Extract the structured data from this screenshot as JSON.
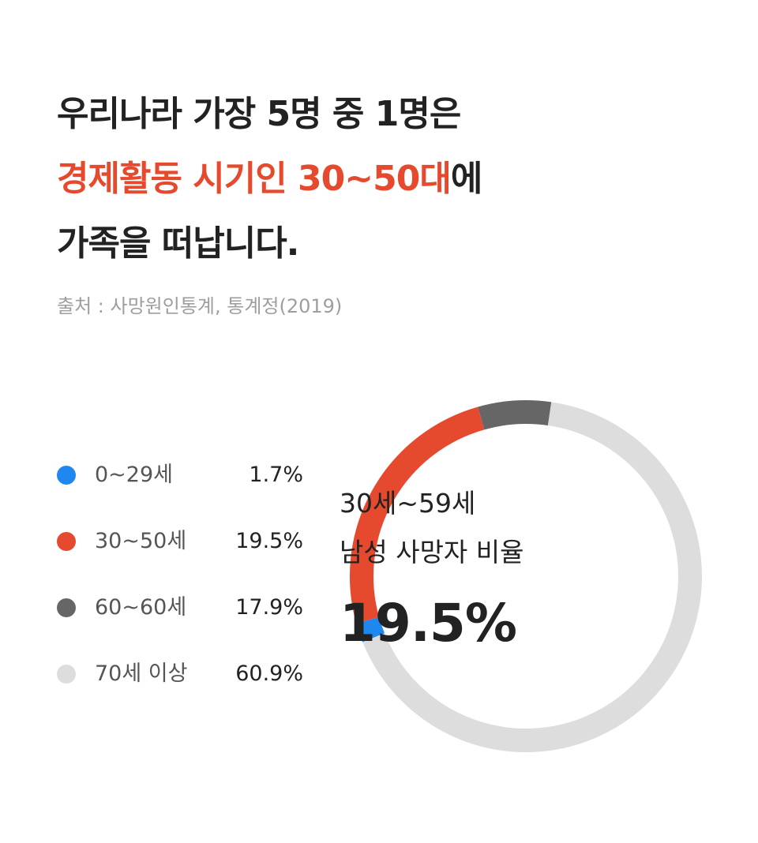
{
  "headline": {
    "line1": "우리나라 가장 5명 중 1명은",
    "line2_accent": "경제활동 시기인 30~50대",
    "line2_rest": "에",
    "line3": "가족을 떠납니다."
  },
  "source": "출처 : 사망원인통계, 통계정(2019)",
  "colors": {
    "accent": "#e64a2e",
    "blue": "#1e88f0",
    "dark_gray": "#666666",
    "light_gray": "#dddddd"
  },
  "legend": [
    {
      "label": "0~29세",
      "value": "1.7%",
      "color": "#1e88f0"
    },
    {
      "label": "30~50세",
      "value": "19.5%",
      "color": "#e64a2e"
    },
    {
      "label": "60~60세",
      "value": "17.9%",
      "color": "#666666"
    },
    {
      "label": "70세 이상",
      "value": "60.9%",
      "color": "#dddddd"
    }
  ],
  "center": {
    "line1": "30세~59세",
    "line2": "남성 사망자 비율",
    "value": "19.5%"
  },
  "chart_data": {
    "type": "pie",
    "style": "donut",
    "categories": [
      "0~29세",
      "30~50세",
      "60~60세",
      "70세 이상"
    ],
    "values": [
      1.7,
      19.5,
      17.9,
      60.9
    ],
    "colors": [
      "#1e88f0",
      "#e64a2e",
      "#666666",
      "#dddddd"
    ],
    "title": "30세~59세 남성 사망자 비율",
    "highlight_value": 19.5
  }
}
